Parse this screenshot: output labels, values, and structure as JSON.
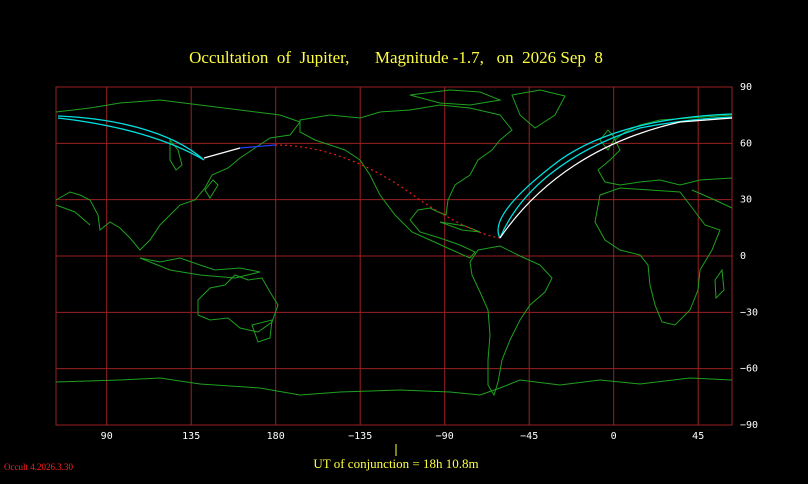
{
  "map": {
    "title": "Occultation  of  Jupiter,      Magnitude -1.7,   on  2026 Sep  8",
    "lon_range": [
      63,
      423
    ],
    "lat_range": [
      -90,
      90
    ],
    "lon_ticks": [
      90,
      135,
      180,
      {
        "value": -135,
        "label": "−135"
      },
      {
        "value": -90,
        "label": "−90"
      },
      {
        "value": -45,
        "label": "−45"
      },
      0,
      45
    ],
    "lat_ticks": [
      90,
      60,
      30,
      0,
      {
        "value": -30,
        "label": "−30"
      },
      {
        "value": -60,
        "label": "−60"
      },
      {
        "value": -90,
        "label": "−90"
      }
    ],
    "conjunction": "UT of conjunction = 18h 10.8m",
    "version": "Occult 4.2026.3.30"
  }
}
